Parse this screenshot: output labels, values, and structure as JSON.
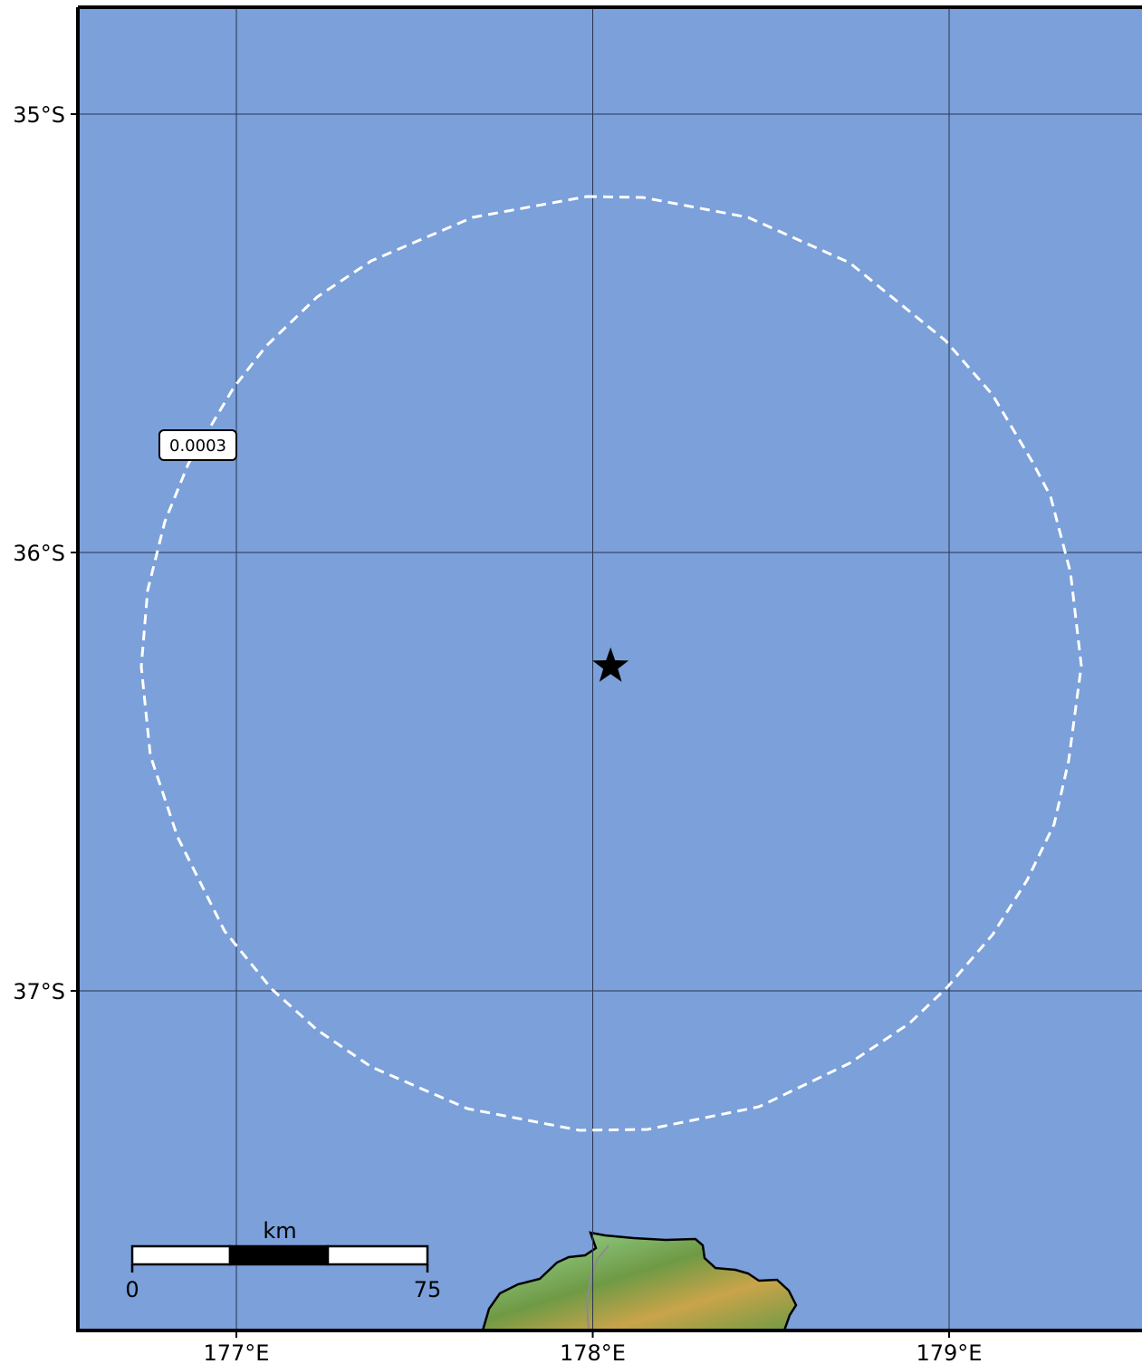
{
  "map": {
    "colors": {
      "ocean": "#7ba0da",
      "gridline": "#2a3550",
      "contour": "#ffffff",
      "land_low": "#9fdf9f",
      "land_mid": "#6f9a45",
      "land_high": "#c9a44a",
      "frame": "#000000"
    },
    "lat_ticks": [
      {
        "value": -35,
        "label": "35°S"
      },
      {
        "value": -36,
        "label": "36°S"
      },
      {
        "value": -37,
        "label": "37°S"
      }
    ],
    "lon_ticks": [
      {
        "value": 177,
        "label": "177°E"
      },
      {
        "value": 178,
        "label": "178°E"
      },
      {
        "value": 179,
        "label": "179°E"
      }
    ],
    "epicenter": {
      "lon": 178.05,
      "lat": -36.26,
      "icon": "star-icon"
    },
    "contour": {
      "label": "0.0003",
      "style": "dashed"
    },
    "scale_bar": {
      "unit": "km",
      "start_label": "0",
      "end_label": "75"
    }
  }
}
